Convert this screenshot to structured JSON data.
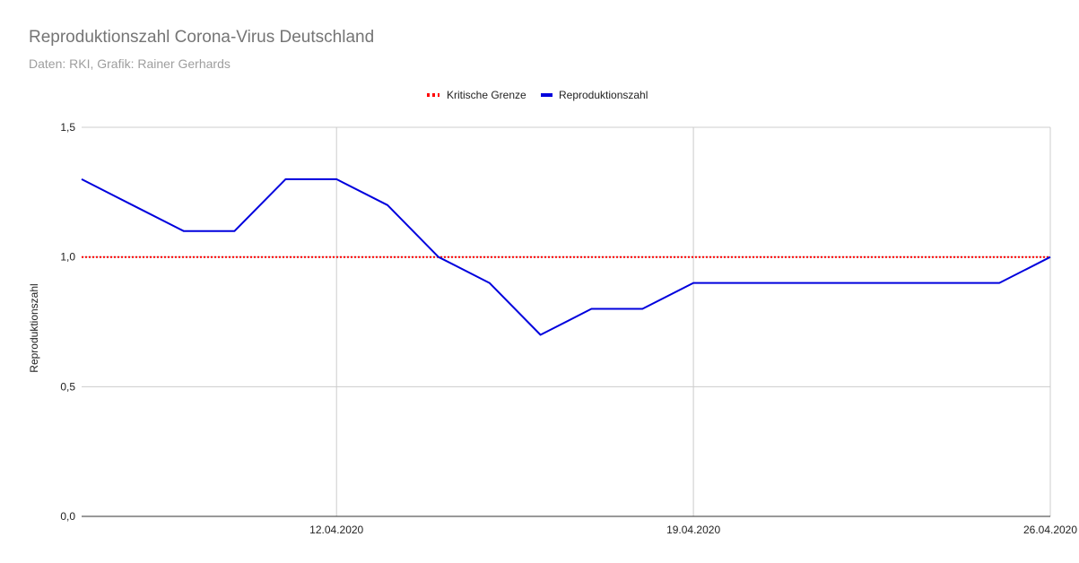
{
  "chart_data": {
    "type": "line",
    "title": "Reproduktionszahl Corona-Virus Deutschland",
    "subtitle": "Daten: RKI, Grafik: Rainer Gerhards",
    "ylabel": "Reproduktionszahl",
    "xlabel": "",
    "ylim": [
      0,
      1.5
    ],
    "xlim": [
      "07.04.2020",
      "26.04.2020"
    ],
    "yticks": [
      "0,0",
      "0,5",
      "1,0",
      "1,5"
    ],
    "xticks": [
      "12.04.2020",
      "19.04.2020",
      "26.04.2020"
    ],
    "grid": true,
    "legend_position": "top",
    "x": [
      "07.04.2020",
      "08.04.2020",
      "09.04.2020",
      "10.04.2020",
      "11.04.2020",
      "12.04.2020",
      "13.04.2020",
      "14.04.2020",
      "15.04.2020",
      "16.04.2020",
      "17.04.2020",
      "18.04.2020",
      "19.04.2020",
      "20.04.2020",
      "21.04.2020",
      "22.04.2020",
      "23.04.2020",
      "24.04.2020",
      "25.04.2020",
      "26.04.2020"
    ],
    "series": [
      {
        "name": "Kritische Grenze",
        "color": "#ff0000",
        "style": "dotted",
        "values": [
          1.0,
          1.0,
          1.0,
          1.0,
          1.0,
          1.0,
          1.0,
          1.0,
          1.0,
          1.0,
          1.0,
          1.0,
          1.0,
          1.0,
          1.0,
          1.0,
          1.0,
          1.0,
          1.0,
          1.0
        ]
      },
      {
        "name": "Reproduktionszahl",
        "color": "#0000dd",
        "style": "solid",
        "values": [
          1.3,
          1.2,
          1.1,
          1.1,
          1.3,
          1.3,
          1.2,
          1.0,
          0.9,
          0.7,
          0.8,
          0.8,
          0.9,
          0.9,
          0.9,
          0.9,
          0.9,
          0.9,
          0.9,
          1.0
        ]
      }
    ]
  }
}
